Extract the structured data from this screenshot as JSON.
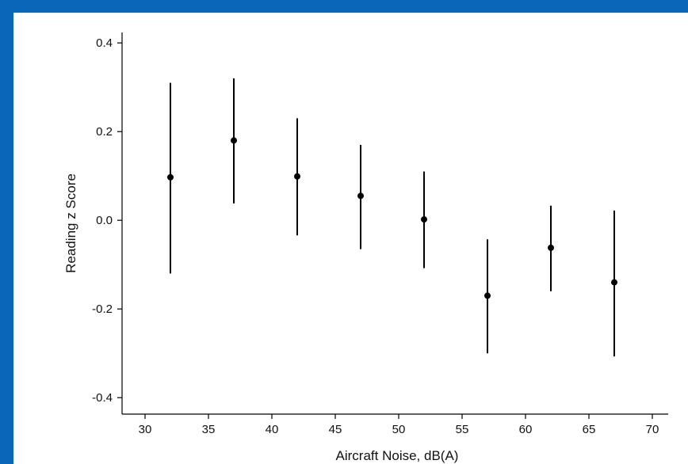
{
  "chart_data": {
    "type": "scatter",
    "title": "",
    "xlabel": "Aircraft Noise, dB(A)",
    "ylabel": "Reading z Score",
    "xlim": [
      29,
      71
    ],
    "ylim": [
      -0.43,
      0.42
    ],
    "x_ticks": [
      30,
      35,
      40,
      45,
      50,
      55,
      60,
      65,
      70
    ],
    "x_tick_labels": [
      "30",
      "35",
      "40",
      "45",
      "50",
      "55",
      "60",
      "65",
      "70"
    ],
    "y_ticks": [
      -0.4,
      -0.2,
      0.0,
      0.2,
      0.4
    ],
    "y_tick_labels": [
      "-0.4",
      "-0.2",
      "0.0",
      "0.2",
      "0.4"
    ],
    "grid": false,
    "series": [
      {
        "x": [
          32,
          37,
          42,
          47,
          52,
          57,
          62,
          67
        ],
        "y": [
          0.097,
          0.18,
          0.099,
          0.055,
          0.002,
          -0.17,
          -0.062,
          -0.14
        ],
        "y_lower": [
          -0.12,
          0.038,
          -0.034,
          -0.065,
          -0.108,
          -0.3,
          -0.16,
          -0.307
        ],
        "y_upper": [
          0.31,
          0.32,
          0.23,
          0.17,
          0.11,
          -0.043,
          0.033,
          0.022
        ]
      }
    ],
    "colors": {
      "marker": "#000000",
      "axis": "#000000",
      "frame": "#0a66b8",
      "plot_background": "#ffffff"
    }
  }
}
